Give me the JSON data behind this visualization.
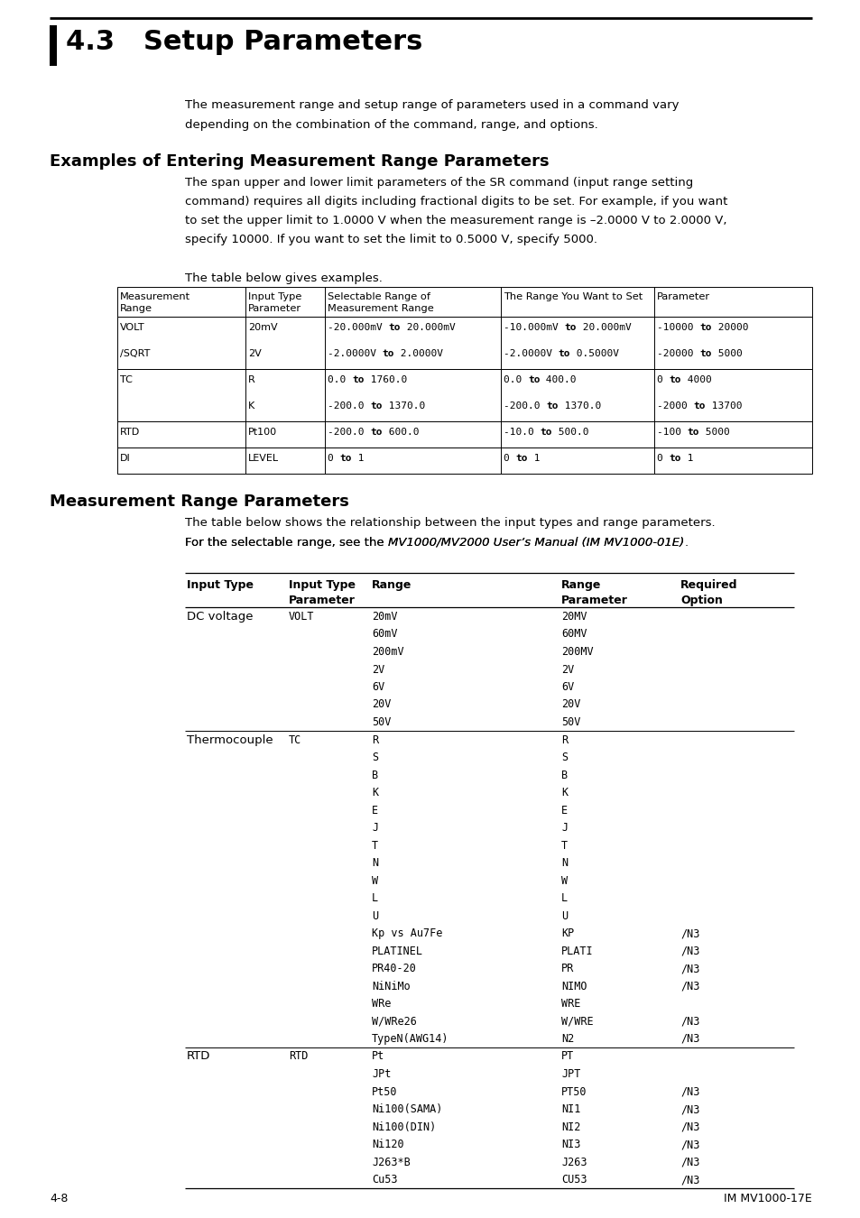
{
  "title": "4.3   Setup Parameters",
  "section1_heading": "Examples of Entering Measurement Range Parameters",
  "section1_body_line1": "The span upper and lower limit parameters of the SR command (input range setting",
  "section1_body_line2": "command) requires all digits including fractional digits to be set. For example, if you want",
  "section1_body_line3": "to set the upper limit to 1.0000 V when the measurement range is –2.0000 V to 2.0000 V,",
  "section1_body_line4": "specify 10000. If you want to set the limit to 0.5000 V, specify 5000.",
  "table1_intro": "The table below gives examples.",
  "section2_heading": "Measurement Range Parameters",
  "section2_body_line1": "The table below shows the relationship between the input types and range parameters.",
  "section2_body_line2_pre": "For the selectable range, see the ",
  "section2_body_line2_italic": "MV1000/MV2000 User’s Manual (IM MV1000-01E)",
  "section2_body_line2_post": ".",
  "intro_line1": "The measurement range and setup range of parameters used in a command vary",
  "intro_line2": "depending on the combination of the command, range, and options.",
  "footer_left": "4-8",
  "footer_right": "IM MV1000-17E"
}
